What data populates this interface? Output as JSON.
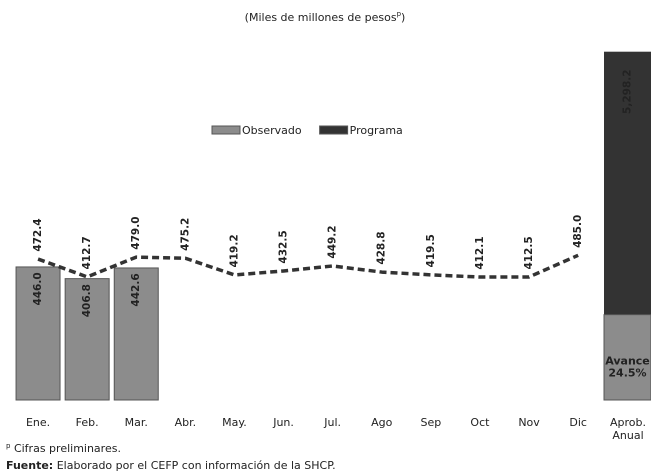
{
  "chart_data": {
    "type": "bar_line",
    "subtitle": [
      "(Miles de millones de pesos",
      "p",
      ")"
    ],
    "categories": [
      "Ene.",
      "Feb.",
      "Mar.",
      "Abr.",
      "May.",
      "Jun.",
      "Jul.",
      "Ago",
      "Sep",
      "Oct",
      "Nov",
      "Dic"
    ],
    "ylim": [
      0,
      1200
    ],
    "series": [
      {
        "name": "Observado",
        "color": "#8c8c8c",
        "type": "bar",
        "values": [
          446.0,
          406.8,
          442.6,
          null,
          null,
          null,
          null,
          null,
          null,
          null,
          null,
          null
        ],
        "value_labels": [
          "446.0",
          "406.8",
          "442.6",
          null,
          null,
          null,
          null,
          null,
          null,
          null,
          null,
          null
        ]
      },
      {
        "name": "Programa",
        "color": "#333333",
        "type": "line",
        "values": [
          472.4,
          412.7,
          479.0,
          475.2,
          419.2,
          432.5,
          449.2,
          428.8,
          419.5,
          412.1,
          412.5,
          485.0
        ],
        "value_labels": [
          "472.4",
          "412.7",
          "479.0",
          "475.2",
          "419.2",
          "432.5",
          "449.2",
          "428.8",
          "419.5",
          "412.1",
          "412.5",
          "485.0"
        ]
      }
    ],
    "annual": {
      "category": [
        "Aprob.",
        "Anual"
      ],
      "ylim": [
        0,
        5400
      ],
      "total": 5298.2,
      "total_label": "5,298.2",
      "color": "#333333",
      "advance_label": "Avance",
      "advance_pct": 24.5,
      "advance_pct_label": "24.5%",
      "advance_color": "#8c8c8c"
    },
    "legend": "top-center",
    "footnote": [
      "p",
      " Cifras preliminares."
    ],
    "source": [
      "Fuente:",
      " Elaborado por el CEFP con información de la SHCP."
    ]
  }
}
